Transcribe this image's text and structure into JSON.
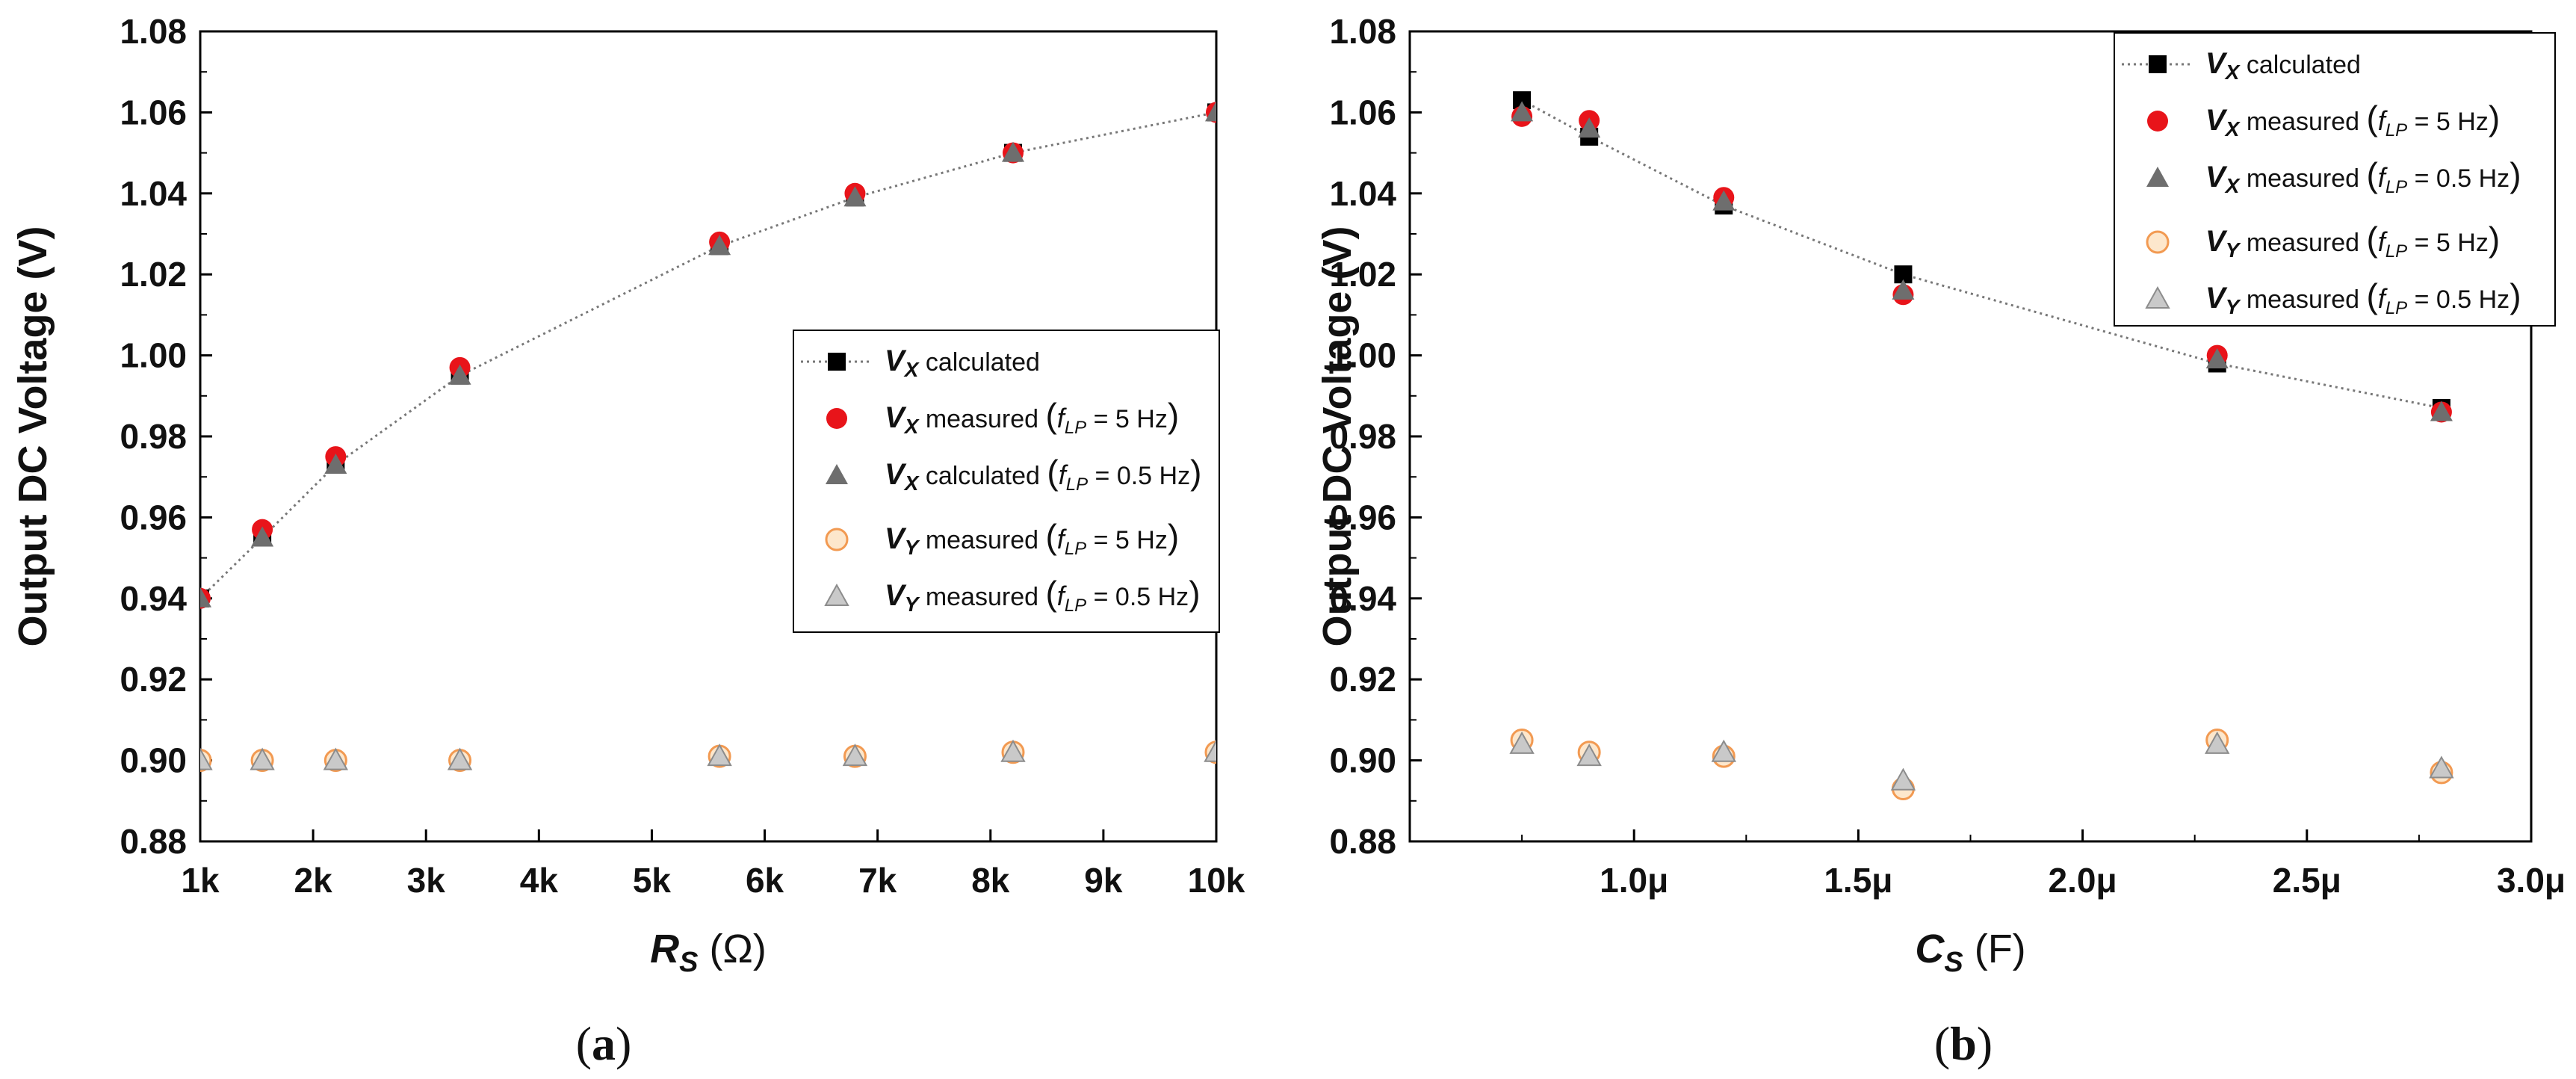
{
  "chart_data": [
    {
      "type": "scatter",
      "panel_label": "a",
      "ylabel": "Output DC Voltage (V)",
      "xlabel_symbol": "R",
      "xlabel_sub": "S",
      "xlabel_unit": " (Ω)",
      "xlim": [
        1000,
        10000
      ],
      "ylim": [
        0.88,
        1.08
      ],
      "xticks": [
        1000,
        2000,
        3000,
        4000,
        5000,
        6000,
        7000,
        8000,
        9000,
        10000
      ],
      "xtick_labels": [
        "1k",
        "2k",
        "3k",
        "4k",
        "5k",
        "6k",
        "7k",
        "8k",
        "9k",
        "10k"
      ],
      "yticks": [
        0.88,
        0.9,
        0.92,
        0.94,
        0.96,
        0.98,
        1.0,
        1.02,
        1.04,
        1.06,
        1.08
      ],
      "ytick_labels": [
        "0.88",
        "0.90",
        "0.92",
        "0.94",
        "0.96",
        "0.98",
        "1.00",
        "1.02",
        "1.04",
        "1.06",
        "1.08"
      ],
      "legend_position": "center-right",
      "series": [
        {
          "name": "VX calculated",
          "sym": "V",
          "sub": "X",
          "desc": " calculated",
          "cond": "",
          "marker": "square",
          "color": "#000000",
          "line": true,
          "x": [
            1000,
            1550,
            2200,
            3300,
            5600,
            6800,
            8200,
            10000
          ],
          "y": [
            0.94,
            0.955,
            0.973,
            0.995,
            1.027,
            1.039,
            1.05,
            1.06
          ]
        },
        {
          "name": "VX measured (fLP = 5 Hz)",
          "sym": "V",
          "sub": "X",
          "desc": " measured ",
          "cond": "= 5 Hz",
          "marker": "circle",
          "color": "#e8141a",
          "line": false,
          "x": [
            1000,
            1550,
            2200,
            3300,
            5600,
            6800,
            8200,
            10000
          ],
          "y": [
            0.94,
            0.957,
            0.975,
            0.997,
            1.028,
            1.04,
            1.05,
            1.06
          ]
        },
        {
          "name": "VX calculated (fLP = 0.5 Hz)",
          "sym": "V",
          "sub": "X",
          "desc": " calculated ",
          "cond": "= 0.5 Hz",
          "marker": "triangle",
          "color": "#6e6e6e",
          "line": false,
          "x": [
            1000,
            1550,
            2200,
            3300,
            5600,
            6800,
            8200,
            10000
          ],
          "y": [
            0.94,
            0.955,
            0.973,
            0.995,
            1.027,
            1.039,
            1.05,
            1.06
          ]
        },
        {
          "name": "VY measured (fLP = 5 Hz)",
          "sym": "V",
          "sub": "Y",
          "desc": " measured ",
          "cond": "= 5 Hz",
          "marker": "open-circle",
          "color": "#f4a460",
          "line": false,
          "x": [
            1000,
            1550,
            2200,
            3300,
            5600,
            6800,
            8200,
            10000
          ],
          "y": [
            0.9,
            0.9,
            0.9,
            0.9,
            0.901,
            0.901,
            0.902,
            0.902
          ]
        },
        {
          "name": "VY measured (fLP = 0.5 Hz)",
          "sym": "V",
          "sub": "Y",
          "desc": " measured ",
          "cond": "= 0.5 Hz",
          "marker": "light-triangle",
          "color": "#b4b4b4",
          "line": false,
          "x": [
            1000,
            1550,
            2200,
            3300,
            5600,
            6800,
            8200,
            10000
          ],
          "y": [
            0.9,
            0.9,
            0.9,
            0.9,
            0.901,
            0.901,
            0.902,
            0.902
          ]
        }
      ]
    },
    {
      "type": "scatter",
      "panel_label": "b",
      "ylabel": "Output DC Voltage (V)",
      "xlabel_symbol": "C",
      "xlabel_sub": "S",
      "xlabel_unit": " (F)",
      "xlim": [
        0.5,
        3.0
      ],
      "ylim": [
        0.88,
        1.08
      ],
      "xticks": [
        1.0,
        1.5,
        2.0,
        2.5,
        3.0
      ],
      "xtick_labels": [
        "1.0μ",
        "1.5μ",
        "2.0μ",
        "2.5μ",
        "3.0μ"
      ],
      "yticks": [
        0.88,
        0.9,
        0.92,
        0.94,
        0.96,
        0.98,
        1.0,
        1.02,
        1.04,
        1.06,
        1.08
      ],
      "ytick_labels": [
        "0.88",
        "0.90",
        "0.92",
        "0.94",
        "0.96",
        "0.98",
        "1.00",
        "1.02",
        "1.04",
        "1.06",
        "1.08"
      ],
      "legend_position": "top-right",
      "series": [
        {
          "name": "VX calculated",
          "sym": "V",
          "sub": "X",
          "desc": " calculated",
          "cond": "",
          "marker": "square",
          "color": "#000000",
          "line": true,
          "x": [
            0.75,
            0.9,
            1.2,
            1.6,
            2.3,
            2.8
          ],
          "y": [
            1.063,
            1.054,
            1.037,
            1.02,
            0.998,
            0.987
          ]
        },
        {
          "name": "VX measured (fLP = 5 Hz)",
          "sym": "V",
          "sub": "X",
          "desc": " measured ",
          "cond": "= 5 Hz",
          "marker": "circle",
          "color": "#e8141a",
          "line": false,
          "x": [
            0.75,
            0.9,
            1.2,
            1.6,
            2.3,
            2.8
          ],
          "y": [
            1.059,
            1.058,
            1.039,
            1.015,
            1.0,
            0.986
          ]
        },
        {
          "name": "VX measured (fLP = 0.5 Hz)",
          "sym": "V",
          "sub": "X",
          "desc": " measured ",
          "cond": "= 0.5 Hz",
          "marker": "triangle",
          "color": "#6e6e6e",
          "line": false,
          "x": [
            0.75,
            0.9,
            1.2,
            1.6,
            2.3,
            2.8
          ],
          "y": [
            1.06,
            1.056,
            1.038,
            1.016,
            0.999,
            0.986
          ]
        },
        {
          "name": "VY measured (fLP = 5 Hz)",
          "sym": "V",
          "sub": "Y",
          "desc": " measured ",
          "cond": "= 5 Hz",
          "marker": "open-circle",
          "color": "#f4a460",
          "line": false,
          "x": [
            0.75,
            0.9,
            1.2,
            1.6,
            2.3,
            2.8
          ],
          "y": [
            0.905,
            0.902,
            0.901,
            0.893,
            0.905,
            0.897
          ]
        },
        {
          "name": "VY measured (fLP = 0.5 Hz)",
          "sym": "V",
          "sub": "Y",
          "desc": " measured ",
          "cond": "= 0.5 Hz",
          "marker": "light-triangle",
          "color": "#b4b4b4",
          "line": false,
          "x": [
            0.75,
            0.9,
            1.2,
            1.6,
            2.3,
            2.8
          ],
          "y": [
            0.904,
            0.901,
            0.902,
            0.895,
            0.904,
            0.898
          ]
        }
      ]
    }
  ]
}
